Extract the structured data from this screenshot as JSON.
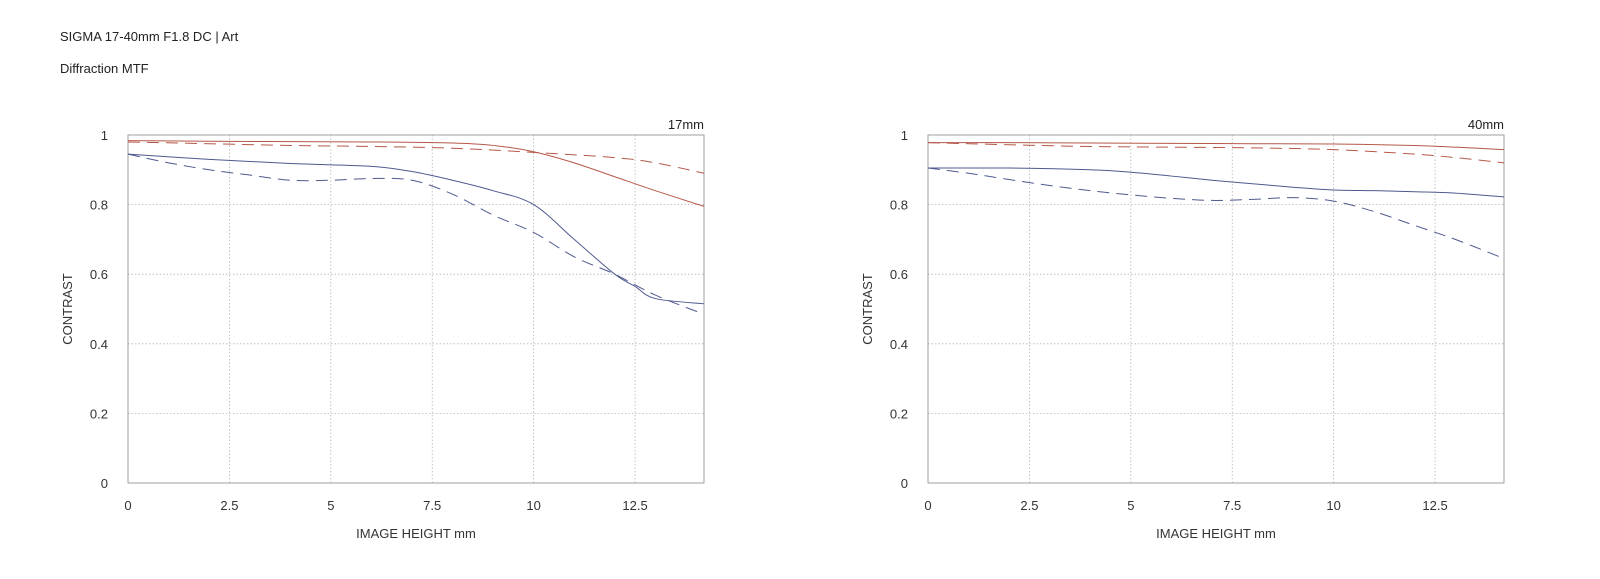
{
  "header": {
    "title": "SIGMA 17-40mm F1.8 DC | Art",
    "subtitle": "Diffraction MTF"
  },
  "colors": {
    "sagittal_red": "#b5584a",
    "meridional_blue": "#4f5a8f",
    "grid": "#b5b5b5",
    "axis": "#888888"
  },
  "chart_data": [
    {
      "type": "line",
      "focal_label": "17mm",
      "xlabel": "IMAGE HEIGHT  mm",
      "ylabel": "CONTRAST",
      "xlim": [
        0,
        14.2
      ],
      "ylim": [
        0,
        1
      ],
      "xticks": [
        0,
        2.5,
        5,
        7.5,
        10,
        12.5
      ],
      "xtick_labels": [
        "0",
        "2.5",
        "5",
        "7.5",
        "10",
        "12.5"
      ],
      "yticks": [
        0,
        0.2,
        0.4,
        0.6,
        0.8,
        1
      ],
      "ytick_labels": [
        "0",
        "0.2",
        "0.4",
        "0.6",
        "0.8",
        "1"
      ],
      "grid": true,
      "series": [
        {
          "color": "red",
          "dash": "solid",
          "x": [
            0,
            2,
            4,
            6,
            8,
            9,
            10,
            11,
            12,
            13,
            14.2
          ],
          "y": [
            0.984,
            0.982,
            0.981,
            0.98,
            0.977,
            0.97,
            0.952,
            0.92,
            0.88,
            0.84,
            0.795
          ]
        },
        {
          "color": "red",
          "dash": "dashed",
          "x": [
            0,
            2,
            4,
            6,
            8,
            10,
            12,
            13,
            14.2
          ],
          "y": [
            0.98,
            0.975,
            0.97,
            0.967,
            0.962,
            0.95,
            0.935,
            0.92,
            0.89
          ]
        },
        {
          "color": "blue",
          "dash": "solid",
          "x": [
            0,
            2,
            4,
            6,
            7,
            8,
            9,
            10,
            11,
            12,
            12.5,
            13,
            14.2
          ],
          "y": [
            0.945,
            0.93,
            0.918,
            0.91,
            0.895,
            0.87,
            0.84,
            0.8,
            0.7,
            0.6,
            0.565,
            0.53,
            0.515
          ]
        },
        {
          "color": "blue",
          "dash": "dashed",
          "x": [
            0,
            1,
            2,
            3,
            4,
            5,
            6,
            7,
            8,
            9,
            10,
            11,
            12,
            13,
            14.2
          ],
          "y": [
            0.945,
            0.92,
            0.9,
            0.885,
            0.87,
            0.87,
            0.875,
            0.87,
            0.83,
            0.77,
            0.72,
            0.65,
            0.6,
            0.54,
            0.485
          ]
        }
      ]
    },
    {
      "type": "line",
      "focal_label": "40mm",
      "xlabel": "IMAGE HEIGHT  mm",
      "ylabel": "CONTRAST",
      "xlim": [
        0,
        14.2
      ],
      "ylim": [
        0,
        1
      ],
      "xticks": [
        0,
        2.5,
        5,
        7.5,
        10,
        12.5
      ],
      "xtick_labels": [
        "0",
        "2.5",
        "5",
        "7.5",
        "10",
        "12.5"
      ],
      "yticks": [
        0,
        0.2,
        0.4,
        0.6,
        0.8,
        1
      ],
      "ytick_labels": [
        "0",
        "0.2",
        "0.4",
        "0.6",
        "0.8",
        "1"
      ],
      "grid": true,
      "series": [
        {
          "color": "red",
          "dash": "solid",
          "x": [
            0,
            2,
            4,
            6,
            8,
            10,
            12,
            13,
            14.2
          ],
          "y": [
            0.978,
            0.978,
            0.977,
            0.976,
            0.975,
            0.974,
            0.97,
            0.965,
            0.958
          ]
        },
        {
          "color": "red",
          "dash": "dashed",
          "x": [
            0,
            2,
            4,
            6,
            8,
            10,
            12,
            13,
            14.2
          ],
          "y": [
            0.978,
            0.972,
            0.967,
            0.965,
            0.963,
            0.958,
            0.945,
            0.935,
            0.92
          ]
        },
        {
          "color": "blue",
          "dash": "solid",
          "x": [
            0,
            2,
            4,
            5,
            6,
            7,
            8,
            9,
            10,
            11,
            12,
            13,
            14.2
          ],
          "y": [
            0.905,
            0.905,
            0.9,
            0.893,
            0.882,
            0.87,
            0.86,
            0.85,
            0.842,
            0.84,
            0.837,
            0.833,
            0.822
          ]
        },
        {
          "color": "blue",
          "dash": "dashed",
          "x": [
            0,
            1,
            2,
            3,
            4,
            5,
            6,
            7,
            8,
            9,
            10,
            11,
            12,
            13,
            14.2
          ],
          "y": [
            0.905,
            0.89,
            0.872,
            0.855,
            0.84,
            0.828,
            0.818,
            0.812,
            0.815,
            0.82,
            0.81,
            0.78,
            0.74,
            0.7,
            0.645
          ]
        }
      ]
    }
  ]
}
